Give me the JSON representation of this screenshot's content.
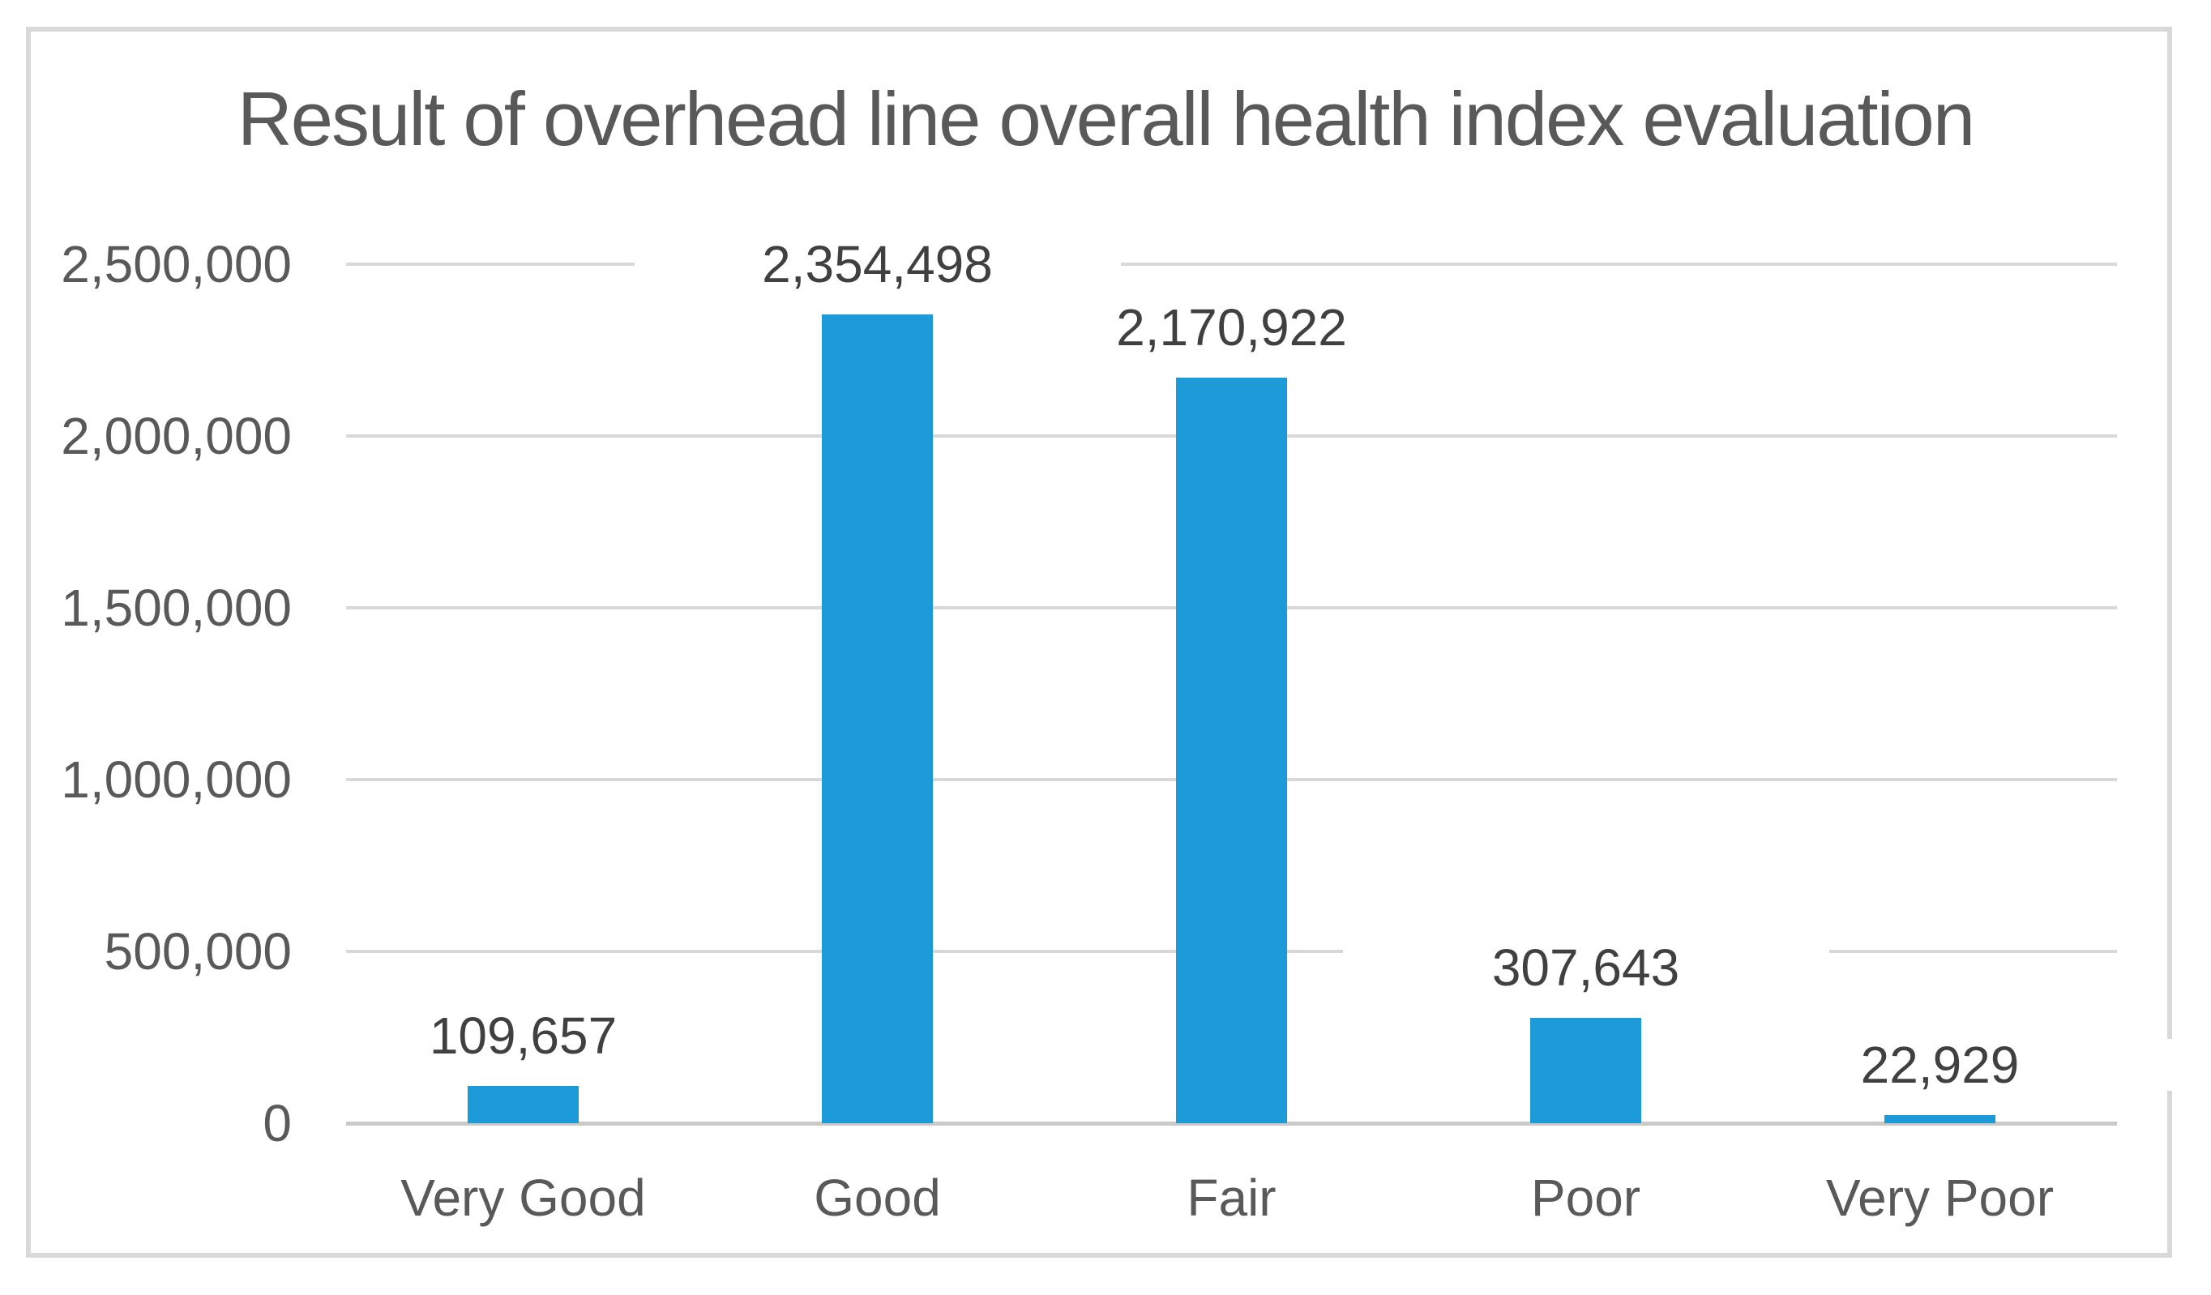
{
  "figure": {
    "background": "#FFFFFF",
    "border_color": "#D9D9D9"
  },
  "chart_data": {
    "type": "bar",
    "title": "Result of overhead line overall health index evaluation",
    "categories": [
      "Very Good",
      "Good",
      "Fair",
      "Poor",
      "Very Poor"
    ],
    "values": [
      109657,
      2354498,
      2170922,
      307643,
      22929
    ],
    "data_labels": [
      "109,657",
      "2,354,498",
      "2,170,922",
      "307,643",
      "22,929"
    ],
    "xlabel": "",
    "ylabel": "",
    "y_axis": {
      "min": 0,
      "max": 2500000,
      "tick_interval": 500000,
      "tick_labels_bottom_to_top": [
        "0",
        "500,000",
        "1,000,000",
        "1,500,000",
        "2,000,000",
        "2,500,000"
      ]
    },
    "grid": true,
    "legend": false,
    "colors": {
      "bar": "#1C9BD8",
      "gridline": "#D9D9D9",
      "axis_line": "#C9C9C9",
      "title_text": "#595959",
      "axis_text": "#595959",
      "data_label_text": "#404040"
    }
  }
}
